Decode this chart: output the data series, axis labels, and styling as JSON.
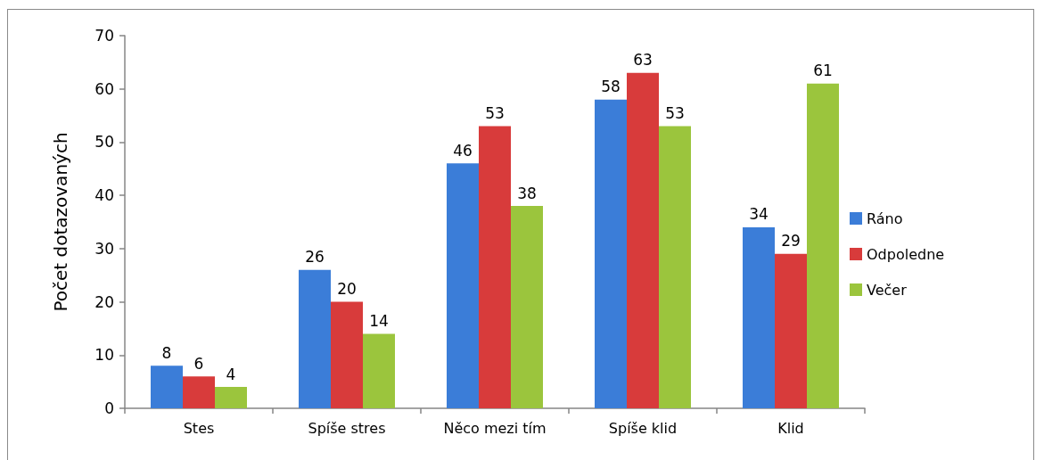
{
  "chart_data": {
    "type": "bar",
    "ylabel": "Počet dotazovaných",
    "categories": [
      "Stes",
      "Spíše stres",
      "Něco mezi tím",
      "Spíše klid",
      "Klid"
    ],
    "series": [
      {
        "name": "Ráno",
        "color": "#3b7dd8",
        "values": [
          8,
          26,
          46,
          58,
          34
        ]
      },
      {
        "name": "Odpoledne",
        "color": "#d83b3b",
        "values": [
          6,
          20,
          53,
          63,
          29
        ]
      },
      {
        "name": "Večer",
        "color": "#9bc53d",
        "values": [
          4,
          14,
          38,
          53,
          61
        ]
      }
    ],
    "ylim": [
      0,
      70
    ],
    "yticks": [
      0,
      10,
      20,
      30,
      40,
      50,
      60,
      70
    ],
    "grid": false,
    "legend": "right",
    "data_labels": true
  }
}
